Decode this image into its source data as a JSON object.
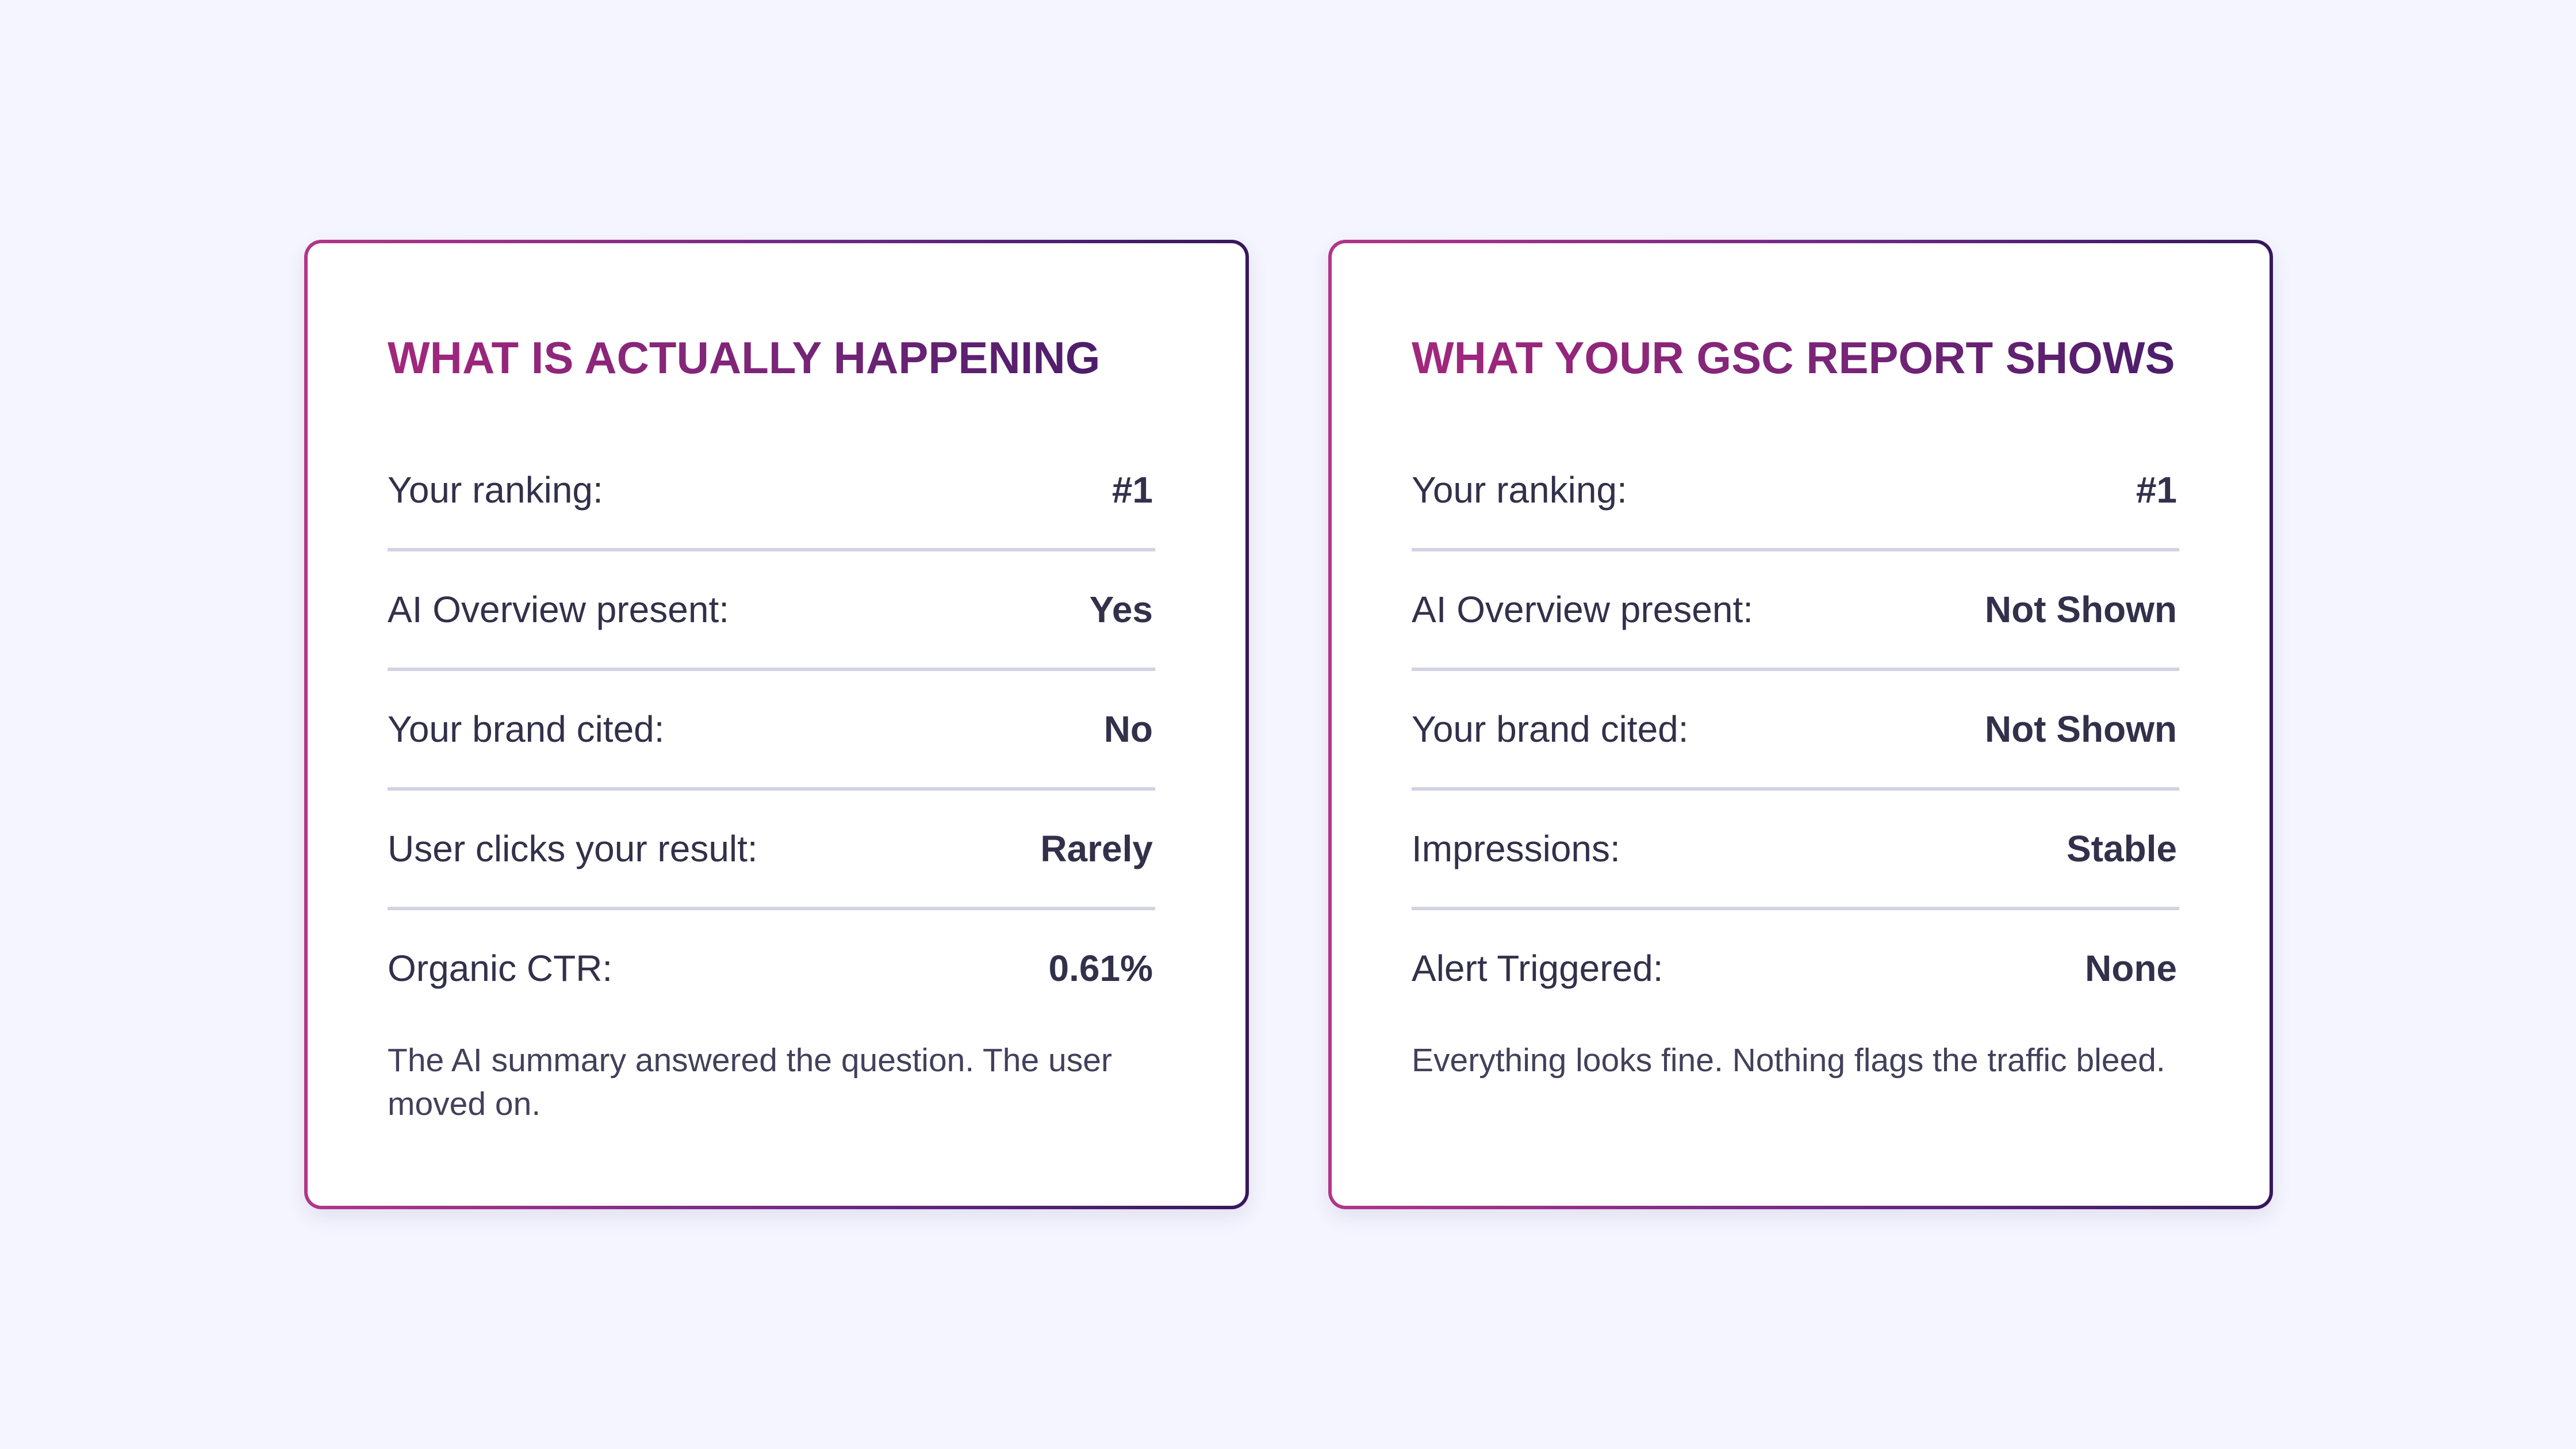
{
  "cards": [
    {
      "title": "WHAT IS ACTUALLY HAPPENING",
      "rows": [
        {
          "label": "Your ranking:",
          "value": "#1"
        },
        {
          "label": "AI Overview present:",
          "value": "Yes"
        },
        {
          "label": "Your brand cited:",
          "value": "No"
        },
        {
          "label": "User clicks your result:",
          "value": "Rarely"
        },
        {
          "label": "Organic CTR:",
          "value": "0.61%"
        }
      ],
      "footnote": "The AI summary answered the question. The user moved on."
    },
    {
      "title": "WHAT YOUR GSC REPORT SHOWS",
      "rows": [
        {
          "label": "Your ranking:",
          "value": "#1"
        },
        {
          "label": "AI Overview present:",
          "value": "Not Shown"
        },
        {
          "label": "Your brand cited:",
          "value": "Not Shown"
        },
        {
          "label": "Impressions:",
          "value": "Stable"
        },
        {
          "label": "Alert Triggered:",
          "value": "None"
        }
      ],
      "footnote": "Everything looks fine. Nothing flags the traffic bleed."
    }
  ],
  "colors": {
    "background": "#f4f5fe",
    "title_gradient_start": "#a2277c",
    "title_gradient_end": "#4b1d6a",
    "border_gradient_start": "#b33588",
    "border_gradient_end": "#35185e",
    "text": "#32304a",
    "divider": "#d2d2e2"
  }
}
